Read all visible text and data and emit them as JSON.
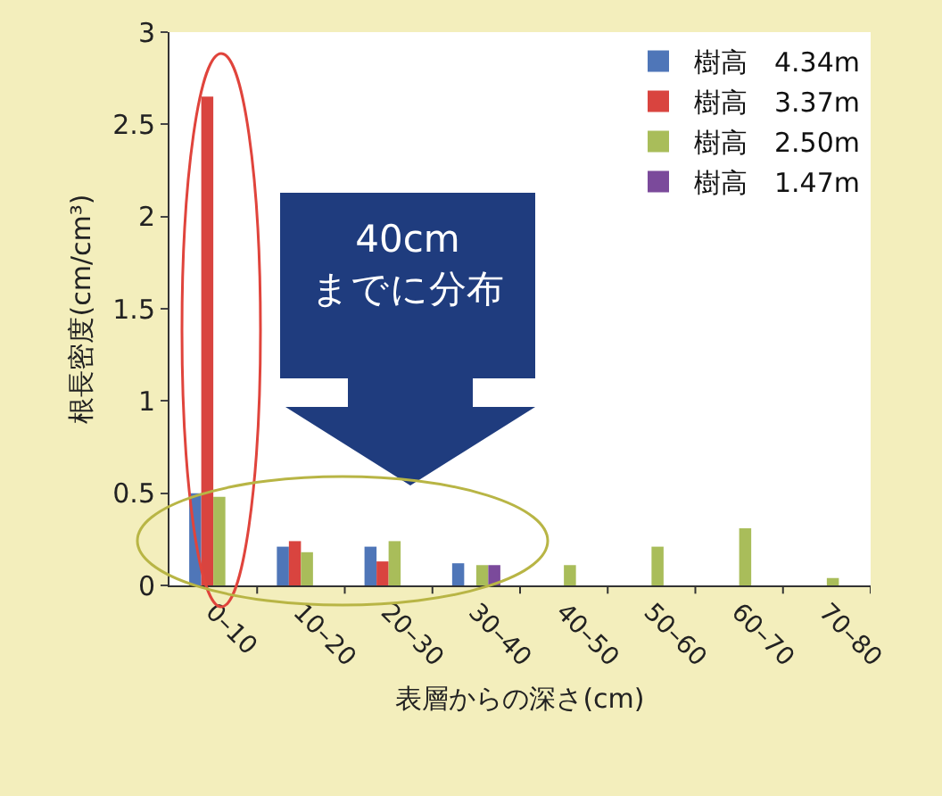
{
  "chart_data": {
    "type": "bar",
    "ylabel": "根長密度(cm/cm³)",
    "xlabel": "表層からの深さ(cm)",
    "categories": [
      "0–10",
      "10–20",
      "20–30",
      "30–40",
      "40–50",
      "50–60",
      "60–70",
      "70–80"
    ],
    "series": [
      {
        "name": "樹高　4.34m",
        "color": "#4f76b8",
        "values": [
          0.5,
          0.21,
          0.21,
          0.12,
          null,
          null,
          null,
          null
        ]
      },
      {
        "name": "樹高　3.37m",
        "color": "#d9443f",
        "values": [
          2.65,
          0.24,
          0.13,
          null,
          null,
          null,
          null,
          null
        ]
      },
      {
        "name": "樹高　2.50m",
        "color": "#a9bd5a",
        "values": [
          0.48,
          0.18,
          0.24,
          0.11,
          0.11,
          0.21,
          0.31,
          0.04
        ]
      },
      {
        "name": "樹高　1.47m",
        "color": "#7b4a9b",
        "values": [
          null,
          null,
          null,
          0.11,
          null,
          null,
          null,
          null
        ]
      }
    ],
    "ylim": [
      0,
      3
    ],
    "yticks": [
      0,
      0.5,
      1,
      1.5,
      2,
      2.5,
      3
    ],
    "grid": false,
    "legend": "top right",
    "annotations": [
      "40cm",
      "までに分布"
    ]
  }
}
